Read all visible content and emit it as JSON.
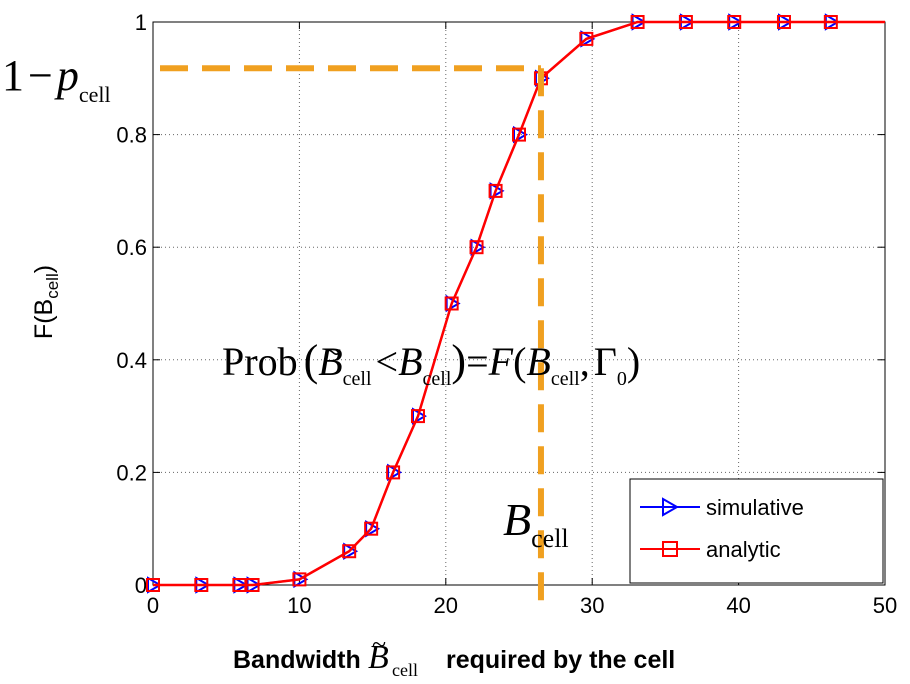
{
  "chart_data": {
    "type": "line",
    "xlim": [
      0,
      50
    ],
    "ylim": [
      0,
      1
    ],
    "x_ticks": [
      0,
      10,
      20,
      30,
      40,
      50
    ],
    "y_ticks": [
      0,
      0.2,
      0.4,
      0.6,
      0.8,
      1
    ],
    "x_tick_labels": [
      "0",
      "10",
      "20",
      "30",
      "40",
      "50"
    ],
    "y_tick_labels": [
      "0",
      "0.2",
      "0.4",
      "0.6",
      "0.8",
      "1"
    ],
    "grid": true,
    "ylabel": {
      "main": "F(B",
      "sub": "cell",
      "close": ")"
    },
    "xlabel": {
      "pre": "Bandwidth",
      "var": "B",
      "tilde": "~",
      "sub": "cell",
      "post": "required by the cell"
    },
    "legend_position": "bottom-right",
    "series": [
      {
        "name": "simulative",
        "color": "#0000ff",
        "marker": "triangle-right",
        "x": [
          0,
          3.3,
          5.9,
          6.8,
          10,
          13.4,
          14.9,
          16.4,
          18.1,
          20.4,
          22.1,
          23.4,
          25,
          26.5,
          29.6,
          33.1,
          36.4,
          39.7,
          43.1,
          46.3
        ],
        "y": [
          0,
          0,
          0,
          0,
          0.01,
          0.06,
          0.1,
          0.2,
          0.3,
          0.5,
          0.6,
          0.7,
          0.8,
          0.9,
          0.97,
          1,
          1,
          1,
          1,
          1
        ]
      },
      {
        "name": "analytic",
        "color": "#ff0000",
        "marker": "square",
        "x": [
          0,
          3.3,
          5.9,
          6.8,
          10,
          13.4,
          14.9,
          16.4,
          18.1,
          20.4,
          22.1,
          23.4,
          25,
          26.5,
          29.6,
          33.1,
          36.4,
          39.7,
          43.1,
          46.3
        ],
        "y": [
          0,
          0,
          0,
          0,
          0.01,
          0.06,
          0.1,
          0.2,
          0.3,
          0.5,
          0.6,
          0.7,
          0.8,
          0.9,
          0.97,
          1,
          1,
          1,
          1,
          1
        ]
      }
    ],
    "annotations": {
      "threshold": {
        "one": "1",
        "minus": "−",
        "var": "p",
        "sub": "cell",
        "y": 0.9,
        "color": "#f0a020"
      },
      "quantile": {
        "var": "B",
        "sub": "cell",
        "x": 26.5
      },
      "formula": {
        "prob": "Prob",
        "lparen": "(",
        "bt": "B",
        "tilde": "~",
        "sub1": "cell",
        "lt": "<",
        "b": "B",
        "sub2": "cell",
        "rparen": ")",
        "eq": "=",
        "f": "F",
        "fopen": "(",
        "b3": "B",
        "sub3": "cell",
        "comma": ",",
        "gamma": "Γ",
        "gsub": "0",
        "fclose": ")"
      }
    }
  }
}
